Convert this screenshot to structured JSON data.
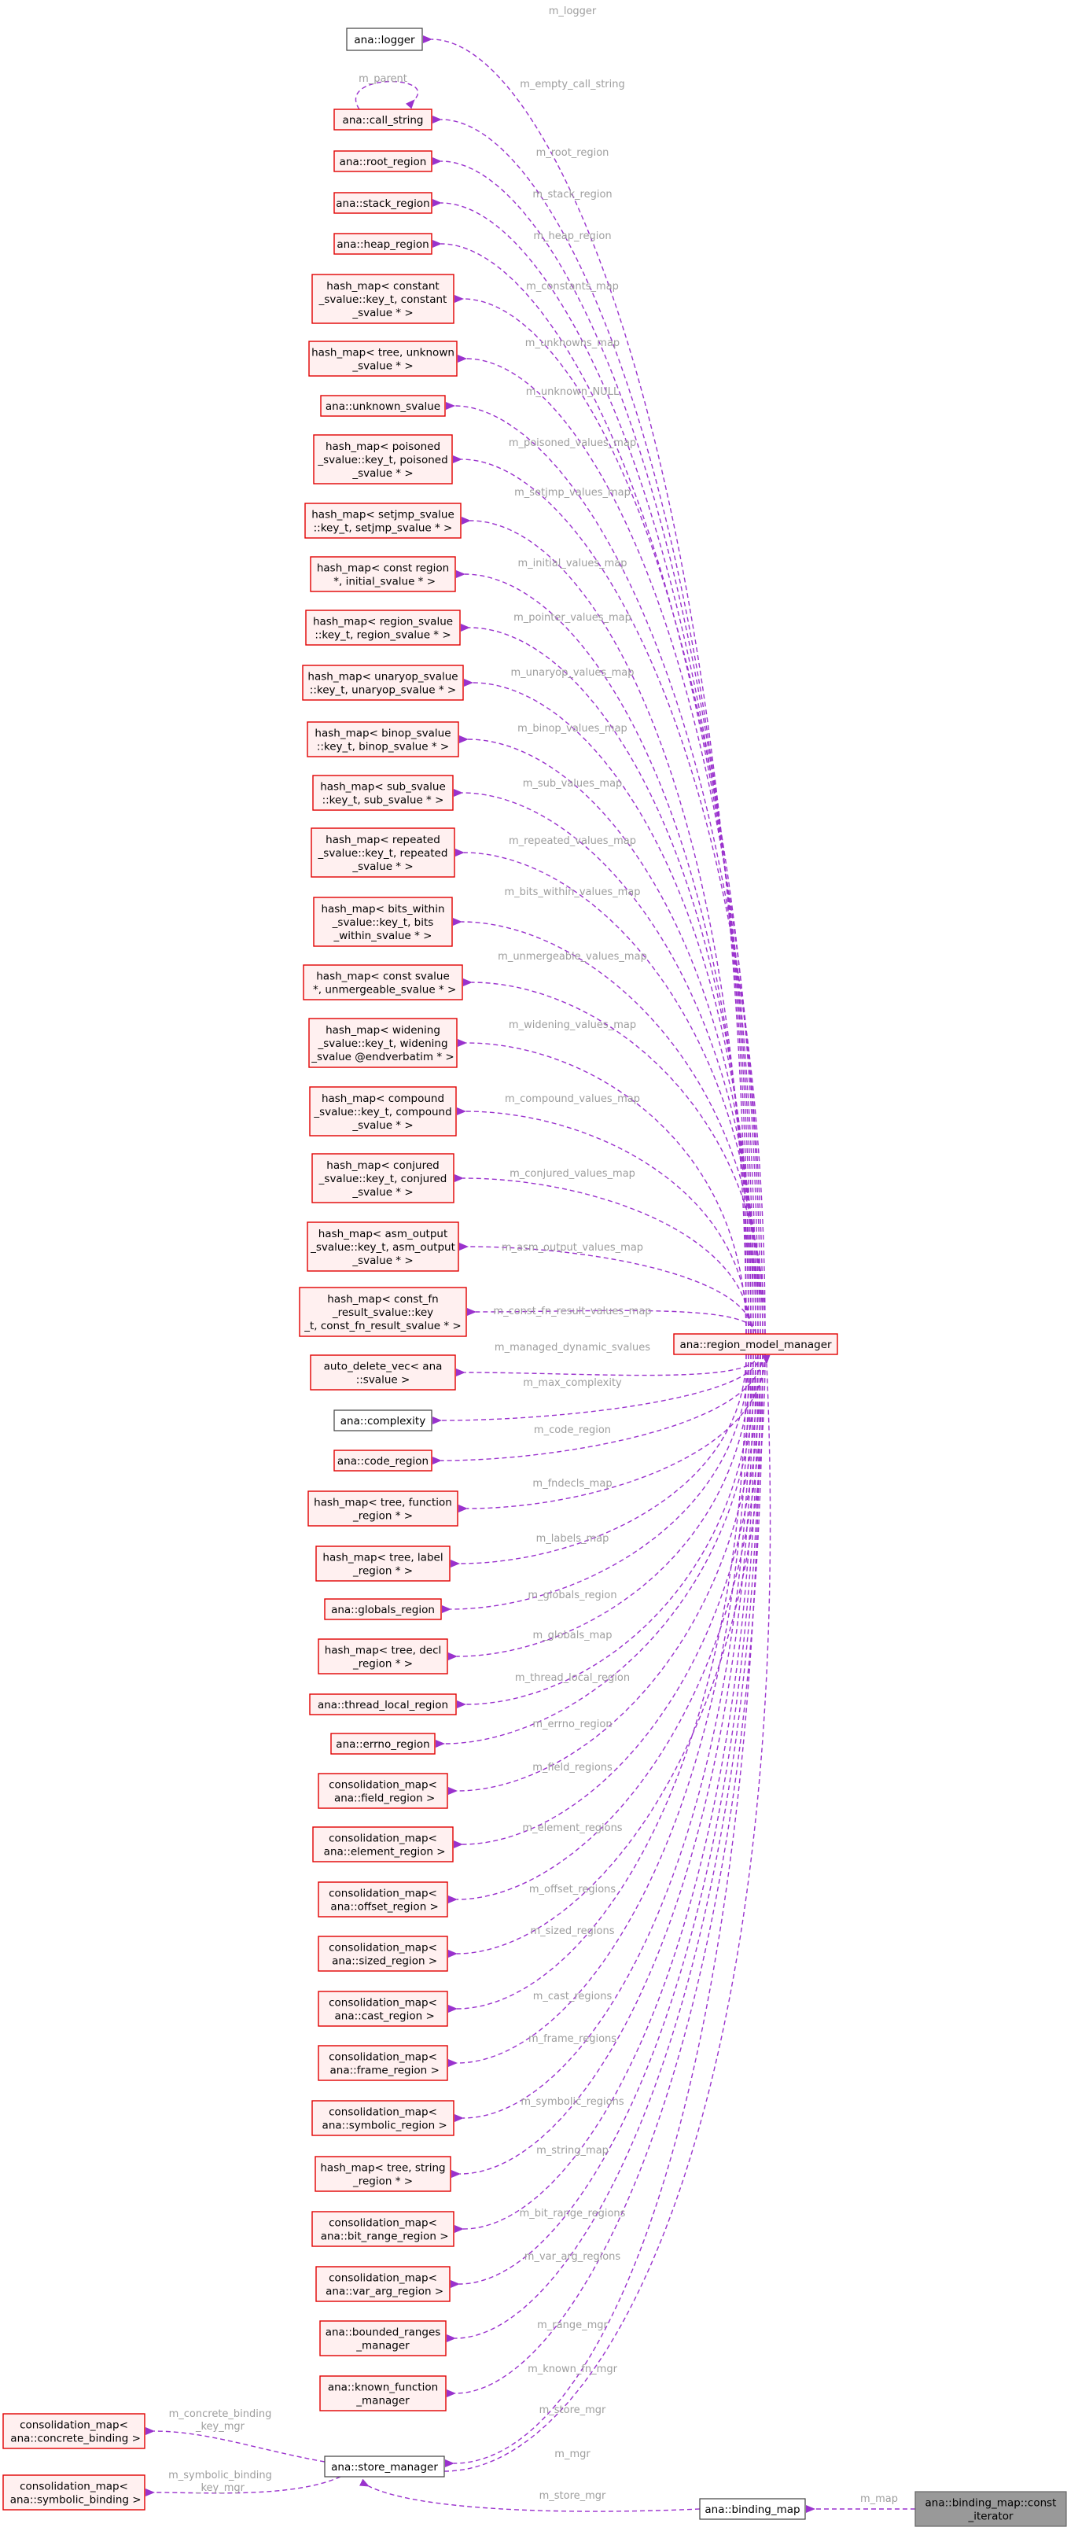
{
  "colors": {
    "edge": "#9a32cd",
    "edge_label": "#9e9e9e",
    "node_border_normal": "#404040",
    "node_border_red": "#e00000",
    "node_fill_red": "#fff0f0",
    "node_fill_focus": "#999999"
  },
  "nodes": {
    "logger": [
      "ana::logger"
    ],
    "call_string": [
      "ana::call_string"
    ],
    "root_region": [
      "ana::root_region"
    ],
    "stack_region": [
      "ana::stack_region"
    ],
    "heap_region": [
      "ana::heap_region"
    ],
    "constants_map": [
      "hash_map< constant",
      "_svalue::key_t, constant",
      "_svalue * >"
    ],
    "unknowns_map": [
      "hash_map< tree, unknown",
      "_svalue * >"
    ],
    "unknown_svalue": [
      "ana::unknown_svalue"
    ],
    "poisoned_map": [
      "hash_map< poisoned",
      "_svalue::key_t, poisoned",
      "_svalue * >"
    ],
    "setjmp_map": [
      "hash_map< setjmp_svalue",
      "::key_t, setjmp_svalue * >"
    ],
    "initial_map": [
      "hash_map< const region",
      " *, initial_svalue * >"
    ],
    "pointer_map": [
      "hash_map< region_svalue",
      "::key_t, region_svalue * >"
    ],
    "unaryop_map": [
      "hash_map< unaryop_svalue",
      "::key_t, unaryop_svalue * >"
    ],
    "binop_map": [
      "hash_map< binop_svalue",
      "::key_t, binop_svalue * >"
    ],
    "sub_map": [
      "hash_map< sub_svalue",
      "::key_t, sub_svalue * >"
    ],
    "repeated_map": [
      "hash_map< repeated",
      "_svalue::key_t, repeated",
      "_svalue * >"
    ],
    "bits_within_map": [
      "hash_map< bits_within",
      "_svalue::key_t, bits",
      "_within_svalue * >"
    ],
    "unmergeable_map": [
      "hash_map< const svalue",
      " *, unmergeable_svalue * >"
    ],
    "widening_map": [
      "hash_map< widening",
      "_svalue::key_t, widening",
      "_svalue @endverbatim * >"
    ],
    "compound_map": [
      "hash_map< compound",
      "_svalue::key_t, compound",
      "_svalue * >"
    ],
    "conjured_map": [
      "hash_map< conjured",
      "_svalue::key_t, conjured",
      "_svalue * >"
    ],
    "asm_output_map": [
      "hash_map< asm_output",
      "_svalue::key_t, asm_output",
      "_svalue * >"
    ],
    "const_fn_map": [
      "hash_map< const_fn",
      "_result_svalue::key",
      "_t, const_fn_result_svalue * >"
    ],
    "auto_delete_vec": [
      "auto_delete_vec< ana",
      "::svalue >"
    ],
    "complexity": [
      "ana::complexity"
    ],
    "code_region": [
      "ana::code_region"
    ],
    "fndecls_map": [
      "hash_map< tree, function",
      "_region * >"
    ],
    "labels_map": [
      "hash_map< tree, label",
      "_region * >"
    ],
    "globals_region": [
      "ana::globals_region"
    ],
    "globals_map": [
      "hash_map< tree, decl",
      "_region * >"
    ],
    "thread_local_region": [
      "ana::thread_local_region"
    ],
    "errno_region": [
      "ana::errno_region"
    ],
    "field_regions": [
      "consolidation_map<",
      " ana::field_region >"
    ],
    "element_regions": [
      "consolidation_map<",
      " ana::element_region >"
    ],
    "offset_regions": [
      "consolidation_map<",
      " ana::offset_region >"
    ],
    "sized_regions": [
      "consolidation_map<",
      " ana::sized_region >"
    ],
    "cast_regions": [
      "consolidation_map<",
      " ana::cast_region >"
    ],
    "frame_regions": [
      "consolidation_map<",
      " ana::frame_region >"
    ],
    "symbolic_regions": [
      "consolidation_map<",
      " ana::symbolic_region >"
    ],
    "string_map": [
      "hash_map< tree, string",
      "_region * >"
    ],
    "bit_range_regions": [
      "consolidation_map<",
      " ana::bit_range_region >"
    ],
    "var_arg_regions": [
      "consolidation_map<",
      " ana::var_arg_region >"
    ],
    "bounded_ranges_manager": [
      "ana::bounded_ranges",
      "_manager"
    ],
    "known_function_manager": [
      "ana::known_function",
      "_manager"
    ],
    "concrete_binding": [
      "consolidation_map<",
      " ana::concrete_binding >"
    ],
    "symbolic_binding": [
      "consolidation_map<",
      " ana::symbolic_binding >"
    ],
    "store_manager": [
      "ana::store_manager"
    ],
    "region_model_manager": [
      "ana::region_model_manager"
    ],
    "binding_map": [
      "ana::binding_map"
    ],
    "const_iterator": [
      "ana::binding_map::const",
      "_iterator"
    ]
  },
  "edge_labels": {
    "logger": "m_logger",
    "call_string_self": "m_parent",
    "call_string": "m_empty_call_string",
    "root_region": "m_root_region",
    "stack_region": "m_stack_region",
    "heap_region": "m_heap_region",
    "constants_map": "m_constants_map",
    "unknowns_map": "m_unknowns_map",
    "unknown_svalue": "m_unknown_NULL",
    "poisoned_map": "m_poisoned_values_map",
    "setjmp_map": "m_setjmp_values_map",
    "initial_map": "m_initial_values_map",
    "pointer_map": "m_pointer_values_map",
    "unaryop_map": "m_unaryop_values_map",
    "binop_map": "m_binop_values_map",
    "sub_map": "m_sub_values_map",
    "repeated_map": "m_repeated_values_map",
    "bits_within_map": "m_bits_within_values_map",
    "unmergeable_map": "m_unmergeable_values_map",
    "widening_map": "m_widening_values_map",
    "compound_map": "m_compound_values_map",
    "conjured_map": "m_conjured_values_map",
    "asm_output_map": "m_asm_output_values_map",
    "const_fn_map": "m_const_fn_result_values_map",
    "auto_delete_vec": "m_managed_dynamic_svalues",
    "complexity": "m_max_complexity",
    "code_region": "m_code_region",
    "fndecls_map": "m_fndecls_map",
    "labels_map": "m_labels_map",
    "globals_region": "m_globals_region",
    "globals_map": "m_globals_map",
    "thread_local_region": "m_thread_local_region",
    "errno_region": "m_errno_region",
    "field_regions": "m_field_regions",
    "element_regions": "m_element_regions",
    "offset_regions": "m_offset_regions",
    "sized_regions": "m_sized_regions",
    "cast_regions": "m_cast_regions",
    "frame_regions": "m_frame_regions",
    "symbolic_regions": "m_symbolic_regions",
    "string_map": "m_string_map",
    "bit_range_regions": "m_bit_range_regions",
    "var_arg_regions": "m_var_arg_regions",
    "bounded_ranges_manager": "m_range_mgr",
    "known_function_manager": "m_known_fn_mgr",
    "store_manager_rmm": "m_store_mgr",
    "rmm_from_store": "m_mgr",
    "concrete_binding": "m_concrete_binding\n_key_mgr",
    "symbolic_binding": "m_symbolic_binding\n_key_mgr",
    "store_from_binding": "m_store_mgr",
    "binding_from_iter": "m_map"
  }
}
